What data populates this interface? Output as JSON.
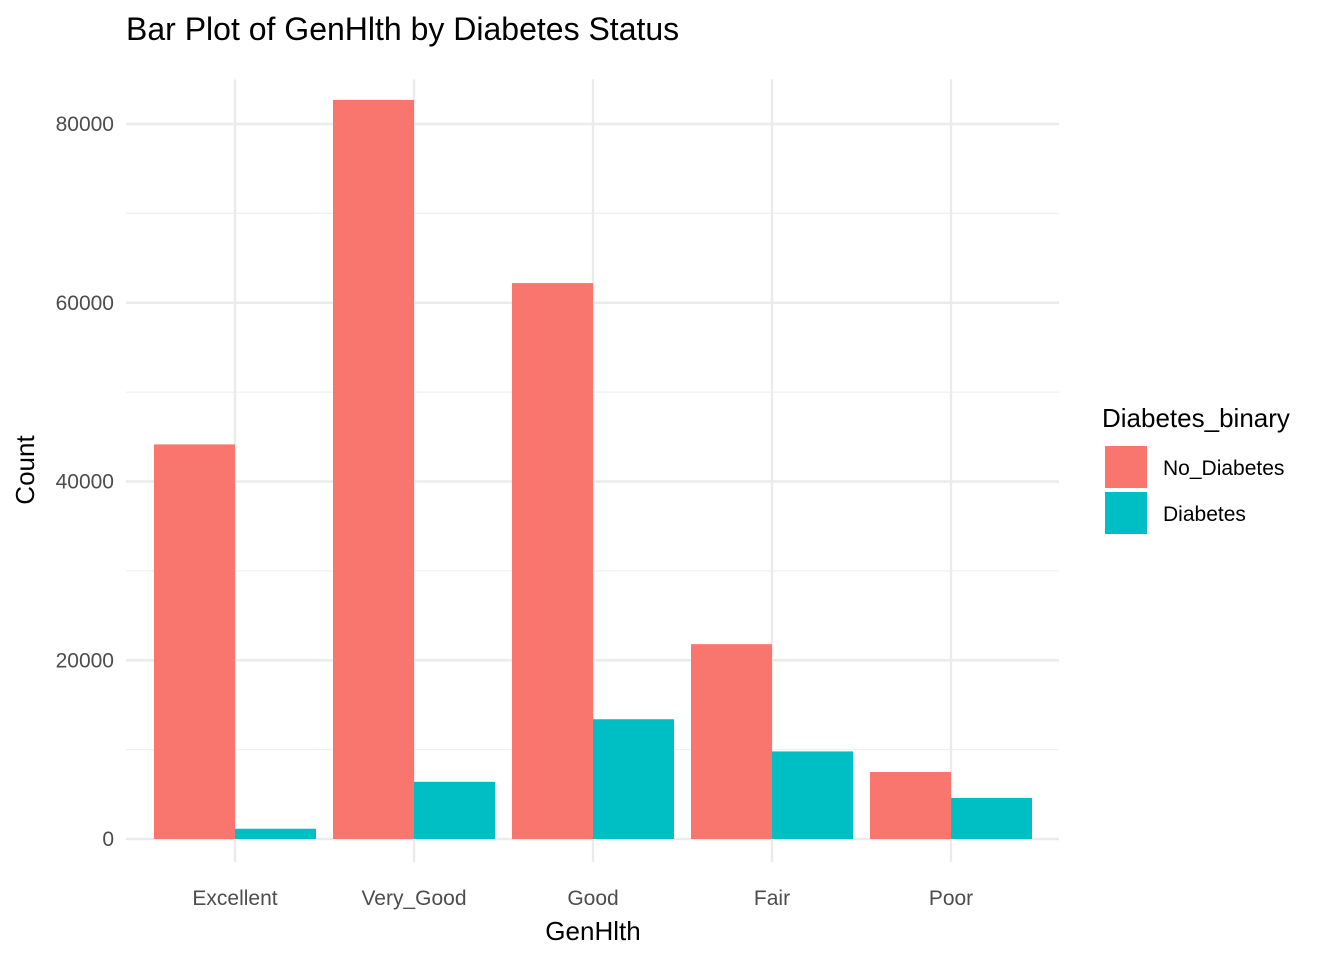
{
  "chart_data": {
    "type": "bar",
    "title": "Bar Plot of GenHlth by Diabetes Status",
    "xlabel": "GenHlth",
    "ylabel": "Count",
    "categories": [
      "Excellent",
      "Very_Good",
      "Good",
      "Fair",
      "Poor"
    ],
    "series": [
      {
        "name": "No_Diabetes",
        "color": "#F8766D",
        "values": [
          44150,
          82700,
          62200,
          21800,
          7500
        ]
      },
      {
        "name": "Diabetes",
        "color": "#00BFC4",
        "values": [
          1150,
          6400,
          13400,
          9800,
          4600
        ]
      }
    ],
    "ylim": [
      0,
      85000
    ],
    "yticks": [
      0,
      20000,
      40000,
      60000,
      80000
    ],
    "yticks_labels": [
      "0",
      "20000",
      "40000",
      "60000",
      "80000"
    ],
    "legend": {
      "title": "Diabetes_binary",
      "position": "right"
    },
    "grid": true
  }
}
